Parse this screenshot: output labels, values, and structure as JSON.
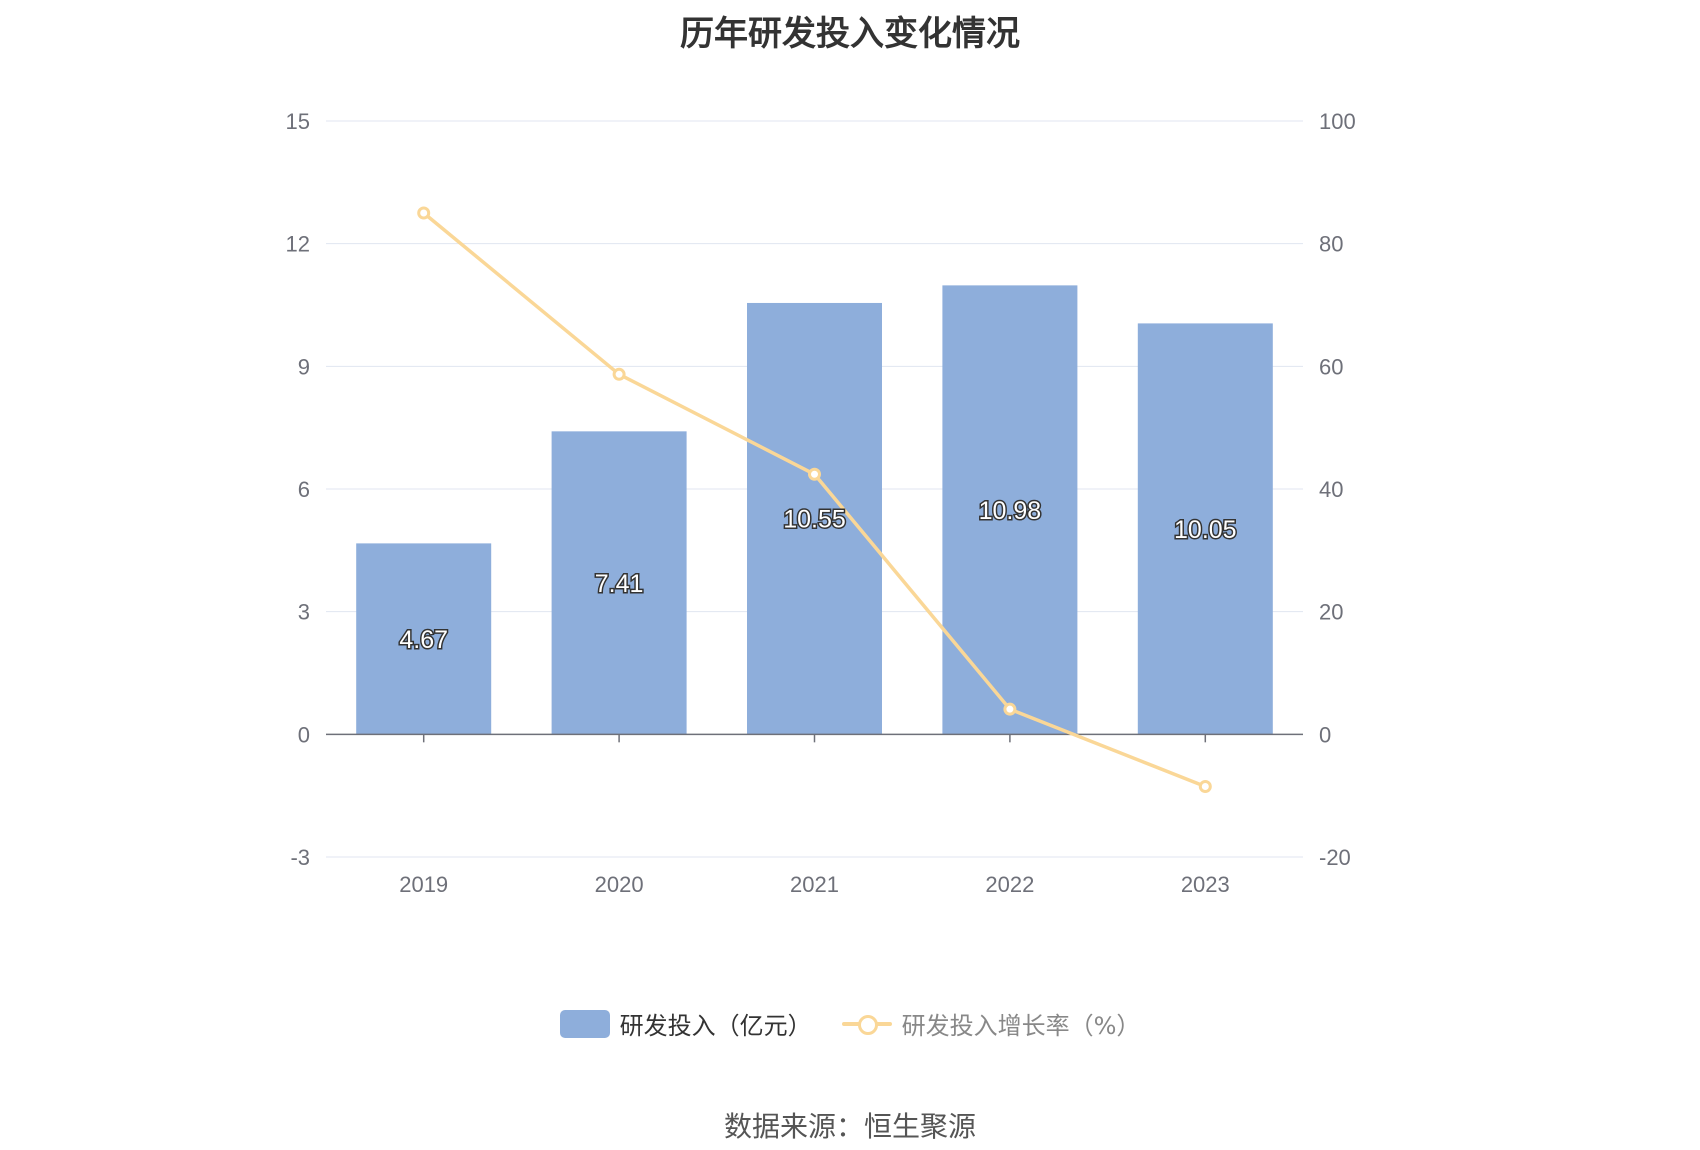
{
  "title": "历年研发投入变化情况",
  "source": "数据来源：恒生聚源",
  "colors": {
    "bar": "#8eaedb",
    "line": "#fad797",
    "grid": "#e0e6f1",
    "axis": "#6e7079",
    "legend_line_text": "#888888",
    "legend_bar_text": "#333333"
  },
  "legend": {
    "bar_label": "研发投入（亿元）",
    "line_label": "研发投入增长率（%）"
  },
  "chart_data": {
    "type": "bar",
    "title": "历年研发投入变化情况",
    "categories": [
      "2019",
      "2020",
      "2021",
      "2022",
      "2023"
    ],
    "series": [
      {
        "name": "研发投入（亿元）",
        "type": "bar",
        "axis": "left",
        "values": [
          4.67,
          7.41,
          10.55,
          10.98,
          10.05
        ]
      },
      {
        "name": "研发投入增长率（%）",
        "type": "line",
        "axis": "right",
        "values": [
          85,
          58.7,
          42.4,
          4.1,
          -8.5
        ]
      }
    ],
    "bar_labels": [
      "4.67",
      "7.41",
      "10.55",
      "10.98",
      "10.05"
    ],
    "y_left": {
      "ylim": [
        -3,
        15
      ],
      "ticks": [
        "15",
        "12",
        "9",
        "6",
        "3",
        "0",
        "-3"
      ],
      "tick_values": [
        15,
        12,
        9,
        6,
        3,
        0,
        -3
      ]
    },
    "y_right": {
      "ylim": [
        -20,
        100
      ],
      "ticks": [
        "100",
        "80",
        "60",
        "40",
        "20",
        "0",
        "-20"
      ],
      "tick_values": [
        100,
        80,
        60,
        40,
        20,
        0,
        -20
      ]
    },
    "grid": true,
    "legend_position": "bottom"
  }
}
